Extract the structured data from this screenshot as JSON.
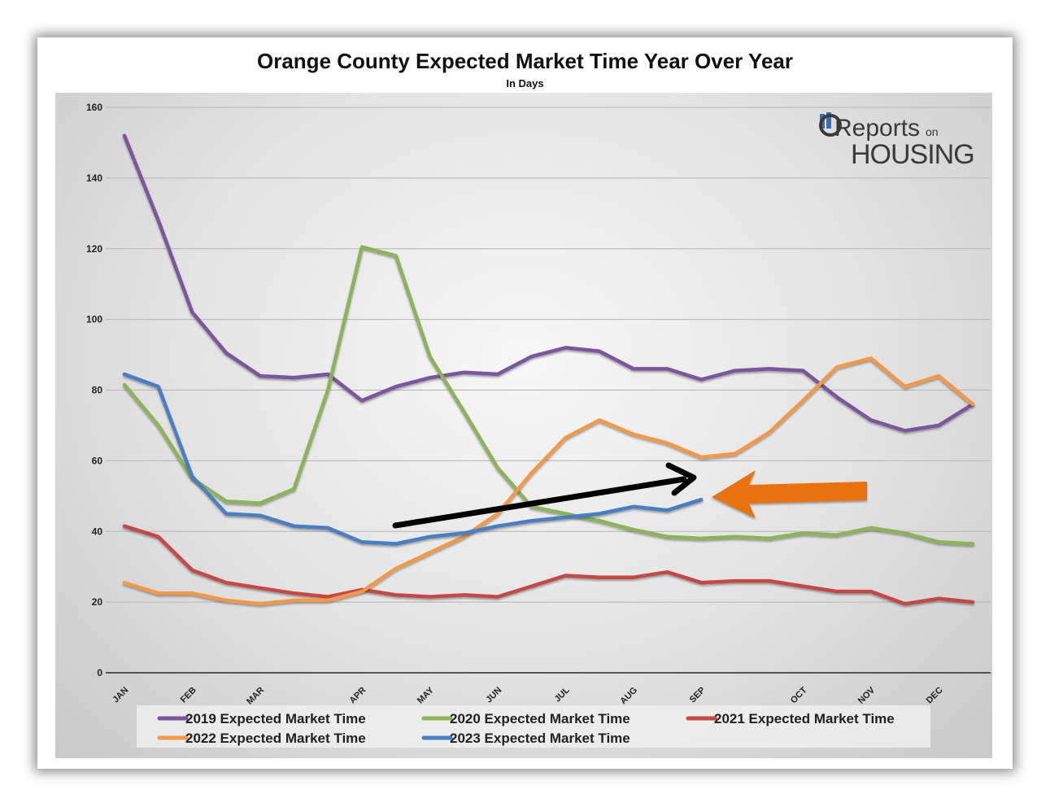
{
  "chart_data": {
    "type": "line",
    "title": "Orange County Expected Market Time Year Over Year",
    "subtitle": "In Days",
    "xlabel": "",
    "ylabel": "",
    "ylim": [
      0,
      160
    ],
    "yticks": [
      0,
      20,
      40,
      60,
      80,
      100,
      120,
      140,
      160
    ],
    "x_tick_labels": [
      "JAN",
      "FEB",
      "MAR",
      "APR",
      "MAY",
      "JUN",
      "JUL",
      "AUG",
      "SEP",
      "OCT",
      "NOV",
      "DEC"
    ],
    "x_tick_positions": [
      0,
      2,
      4,
      7,
      9,
      11,
      13,
      15,
      17,
      20,
      22,
      24
    ],
    "n_points": 26,
    "grid": true,
    "legend_position": "bottom",
    "series": [
      {
        "name": "2019 Expected Market Time",
        "color": "#7b559e",
        "values": [
          152,
          128,
          102,
          90.5,
          84,
          83.5,
          84.5,
          77,
          81,
          83.5,
          85,
          84.5,
          89.5,
          92,
          91,
          86,
          86,
          83,
          85.5,
          86,
          85.5,
          78,
          71.5,
          68.5,
          70,
          76
        ]
      },
      {
        "name": "2020 Expected Market Time",
        "color": "#8db35a",
        "values": [
          81.5,
          70,
          55,
          48.5,
          48,
          52,
          80,
          120.5,
          118,
          89.5,
          74,
          58,
          47,
          45,
          43,
          40.5,
          38.5,
          38,
          38.5,
          38,
          39.5,
          39,
          41,
          39.5,
          37,
          36.5
        ]
      },
      {
        "name": "2021 Expected Market Time",
        "color": "#c44a45",
        "values": [
          41.5,
          38.5,
          29,
          25.5,
          24,
          22.5,
          21.5,
          23.5,
          22,
          21.5,
          22,
          21.5,
          24.5,
          27.5,
          27,
          27,
          28.5,
          25.5,
          26,
          26,
          24.5,
          23,
          23,
          19.5,
          21,
          20
        ]
      },
      {
        "name": "2022 Expected Market Time",
        "color": "#f2994a",
        "values": [
          25.5,
          22.5,
          22.5,
          20.5,
          19.5,
          20.5,
          20.5,
          23,
          29.5,
          34,
          38.5,
          45,
          56.5,
          66.5,
          71.5,
          67.5,
          65,
          61,
          62,
          68,
          77,
          86.5,
          89,
          81,
          84,
          76
        ]
      },
      {
        "name": "2023 Expected Market Time",
        "color": "#4a7fc1",
        "values": [
          84.5,
          81,
          55.5,
          45,
          44.5,
          41.5,
          41,
          37,
          36.5,
          38.5,
          39.5,
          41.5,
          43,
          44,
          45,
          47,
          46,
          49
        ]
      }
    ],
    "annotations": [
      {
        "type": "arrow",
        "color": "#000000",
        "description": "black trend arrow pointing to SEP 2023 value"
      },
      {
        "type": "arrow",
        "color": "#e8720c",
        "description": "orange arrow pointing at end of 2023 line"
      }
    ]
  },
  "logo": {
    "line1": "Reports",
    "line1b": "on",
    "line2": "HOUSING"
  },
  "colors": {
    "gridline": "#b4b4b4",
    "axis": "#555555"
  }
}
